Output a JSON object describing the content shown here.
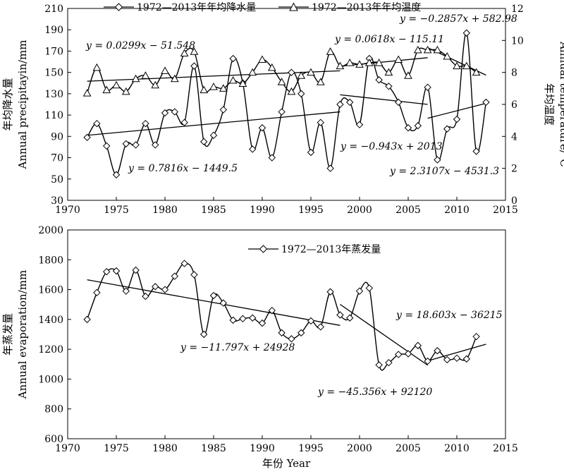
{
  "chart_data": [
    {
      "type": "line",
      "id": "top",
      "xlim": [
        1970,
        2015
      ],
      "x_ticks": [
        "1970",
        "1975",
        "1980",
        "1985",
        "1990",
        "1995",
        "2000",
        "2005",
        "2010",
        "2015"
      ],
      "ylim": [
        30,
        210
      ],
      "y_ticks": [
        "30",
        "50",
        "70",
        "90",
        "110",
        "130",
        "150",
        "170",
        "190",
        "210"
      ],
      "ylabel_cn": "年均降水量",
      "ylabel_en": "Annual precipitayin/mm",
      "y2lim": [
        0,
        12
      ],
      "y2_ticks": [
        "0",
        "2",
        "4",
        "6",
        "8",
        "10",
        "12"
      ],
      "y2label_cn": "年均温度",
      "y2label_en": "Annual temperature/°C",
      "grid": false,
      "legend_position": "top",
      "series": [
        {
          "name": "1972—2013年年均降水量",
          "marker": "diamond",
          "axis": "left",
          "x": [
            1972,
            1973,
            1974,
            1975,
            1976,
            1977,
            1978,
            1979,
            1980,
            1981,
            1982,
            1983,
            1984,
            1985,
            1986,
            1987,
            1988,
            1989,
            1990,
            1991,
            1992,
            1993,
            1994,
            1995,
            1996,
            1997,
            1998,
            1999,
            2000,
            2001,
            2002,
            2003,
            2004,
            2005,
            2006,
            2007,
            2008,
            2009,
            2010,
            2011,
            2012,
            2013
          ],
          "values": [
            89,
            102,
            81,
            54,
            83,
            82,
            102,
            82,
            112,
            113,
            103,
            156,
            85,
            91,
            115,
            163,
            140,
            78,
            98,
            70,
            113,
            150,
            130,
            75,
            103,
            60,
            120,
            122,
            101,
            163,
            143,
            137,
            122,
            98,
            100,
            136,
            68,
            97,
            106,
            187,
            76,
            122
          ]
        },
        {
          "name": "1972—2013年年均温度",
          "marker": "triangle",
          "axis": "right",
          "x": [
            1972,
            1973,
            1974,
            1975,
            1976,
            1977,
            1978,
            1979,
            1980,
            1981,
            1982,
            1983,
            1984,
            1985,
            1986,
            1987,
            1988,
            1989,
            1990,
            1991,
            1992,
            1993,
            1994,
            1995,
            1996,
            1997,
            1998,
            1999,
            2000,
            2001,
            2002,
            2003,
            2004,
            2005,
            2006,
            2007,
            2008,
            2009,
            2010,
            2011,
            2012,
            2013
          ],
          "values": [
            6.7,
            8.3,
            6.9,
            7.2,
            6.8,
            7.6,
            7.8,
            7.2,
            8.1,
            7.6,
            9.2,
            9.3,
            6.9,
            7.1,
            7.0,
            7.5,
            7.3,
            8.0,
            8.8,
            8.3,
            7.4,
            6.8,
            7.8,
            8.0,
            7.4,
            9.3,
            8.4,
            8.6,
            8.5,
            8.6,
            8.6,
            8.0,
            8.8,
            7.8,
            9.4,
            9.4,
            9.4,
            9.0,
            8.4,
            8.4,
            8.0,
            null
          ]
        }
      ],
      "trend_lines": [
        {
          "axis": "left",
          "x": [
            1972,
            1998
          ],
          "y": [
            91,
            113
          ],
          "label": "y = 0.7816x − 1449.5"
        },
        {
          "axis": "left",
          "x": [
            1998,
            2007
          ],
          "y": [
            129,
            120
          ],
          "label": "y = −0.943x + 2013"
        },
        {
          "axis": "left",
          "x": [
            2007,
            2013
          ],
          "y": [
            107,
            121
          ],
          "label": "y = 2.3107x − 4531.3"
        },
        {
          "axis": "right",
          "x": [
            1972,
            1998
          ],
          "y": [
            7.45,
            8.1
          ],
          "label": "y = 0.0299x − 51.548"
        },
        {
          "axis": "right",
          "x": [
            1998,
            2007
          ],
          "y": [
            8.39,
            8.92
          ],
          "label": "y = 0.0618x − 115.11"
        },
        {
          "axis": "right",
          "x": [
            2007,
            2013
          ],
          "y": [
            9.55,
            7.83
          ],
          "label": "y = −0.2857x + 582.98"
        }
      ]
    },
    {
      "type": "line",
      "id": "bottom",
      "xlim": [
        1970,
        2015
      ],
      "x_ticks": [
        "1970",
        "1975",
        "1980",
        "1985",
        "1990",
        "1995",
        "2000",
        "2005",
        "2010",
        "2015"
      ],
      "ylim": [
        600,
        2000
      ],
      "y_ticks": [
        "600",
        "800",
        "1000",
        "1200",
        "1400",
        "1600",
        "1800",
        "2000"
      ],
      "ylabel_cn": "年蒸发量",
      "ylabel_en": "Annual evaporation/mm",
      "xlabel": "年份 Year",
      "grid": false,
      "legend_position": "top",
      "series": [
        {
          "name": "1972—2013年蒸发量",
          "marker": "diamond",
          "axis": "left",
          "x": [
            1972,
            1973,
            1974,
            1975,
            1976,
            1977,
            1978,
            1979,
            1980,
            1981,
            1982,
            1983,
            1984,
            1985,
            1986,
            1987,
            1988,
            1989,
            1990,
            1991,
            1992,
            1993,
            1994,
            1995,
            1996,
            1997,
            1998,
            1999,
            2000,
            2001,
            2002,
            2003,
            2004,
            2005,
            2006,
            2007,
            2008,
            2009,
            2010,
            2011,
            2012
          ],
          "values": [
            1400,
            1580,
            1720,
            1725,
            1590,
            1730,
            1555,
            1620,
            1600,
            1690,
            1775,
            1700,
            1300,
            1560,
            1510,
            1395,
            1405,
            1410,
            1375,
            1460,
            1310,
            1270,
            1310,
            1390,
            1350,
            1585,
            1430,
            1410,
            1590,
            1610,
            1095,
            1110,
            1165,
            1170,
            1225,
            1120,
            1190,
            1130,
            1140,
            1135,
            1285
          ]
        }
      ],
      "trend_lines": [
        {
          "axis": "left",
          "x": [
            1972,
            1998
          ],
          "y": [
            1666,
            1360
          ],
          "label": "y = −11.797x + 24928"
        },
        {
          "axis": "left",
          "x": [
            1998,
            2007
          ],
          "y": [
            1501,
            1093
          ],
          "label": "y = −45.356x + 92120"
        },
        {
          "axis": "left",
          "x": [
            2007,
            2013
          ],
          "y": [
            1122,
            1234
          ],
          "label": "y = 18.603x − 36215"
        }
      ]
    }
  ]
}
